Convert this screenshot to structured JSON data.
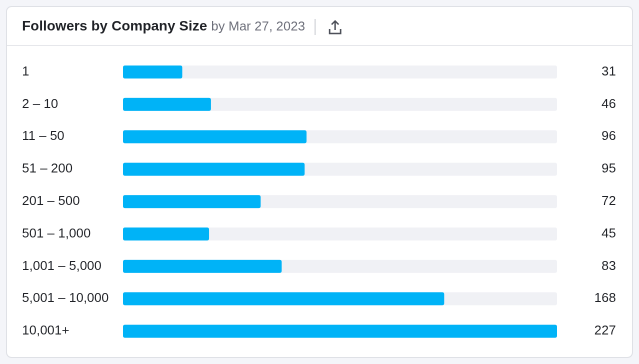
{
  "chart_data": {
    "type": "bar",
    "orientation": "horizontal",
    "title": "Followers by Company Size",
    "subtitle": "by Mar 27, 2023",
    "categories": [
      "1",
      "2 – 10",
      "11 – 50",
      "51 – 200",
      "201 – 500",
      "501 – 1,000",
      "1,001 – 5,000",
      "5,001 – 10,000",
      "10,001+"
    ],
    "values": [
      31,
      46,
      96,
      95,
      72,
      45,
      83,
      168,
      227
    ],
    "color": "#00b3f7"
  }
}
